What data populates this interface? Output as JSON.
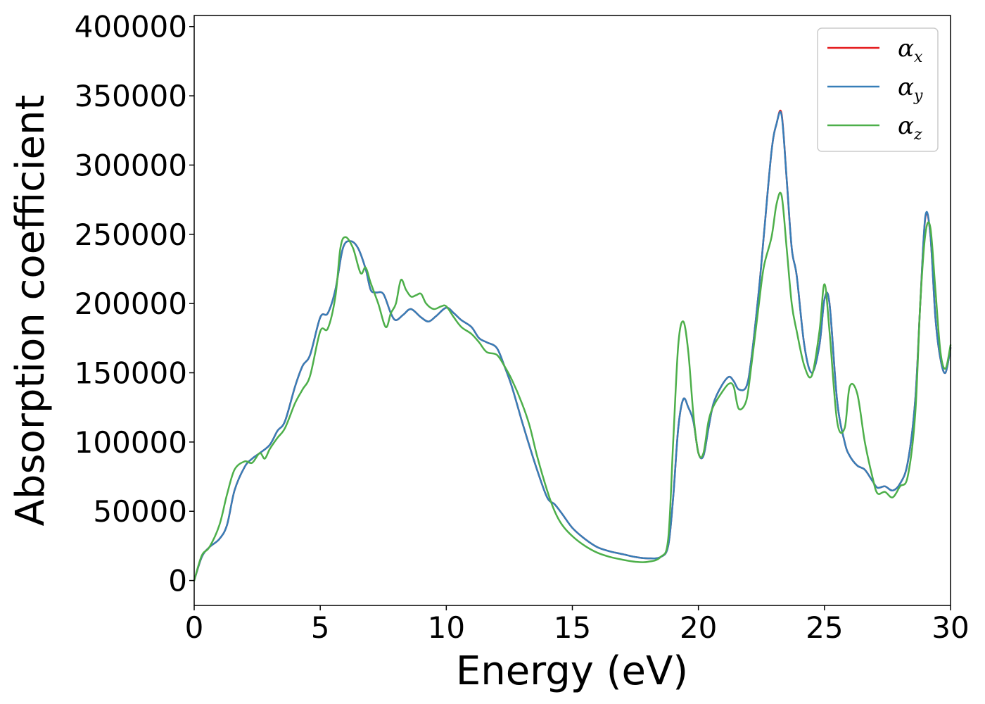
{
  "chart_data": {
    "type": "line",
    "xlabel": "Energy (eV)",
    "ylabel": "Absorption coefficient",
    "xlim": [
      0,
      30
    ],
    "ylim": [
      -18000,
      408000
    ],
    "xticks": [
      0,
      5,
      10,
      15,
      20,
      25,
      30
    ],
    "yticks": [
      0,
      50000,
      100000,
      150000,
      200000,
      250000,
      300000,
      350000,
      400000
    ],
    "grid": false,
    "legend_position": "top-right",
    "series": [
      {
        "name": "α_x",
        "symbol": "α",
        "subscript": "x",
        "color": "#e41a1c",
        "x": [
          0,
          0.3,
          0.6,
          1.0,
          1.3,
          1.6,
          2.0,
          2.3,
          2.6,
          3.0,
          3.3,
          3.6,
          4.0,
          4.3,
          4.6,
          5.0,
          5.3,
          5.6,
          5.9,
          6.2,
          6.5,
          6.8,
          7.0,
          7.2,
          7.5,
          7.8,
          8.0,
          8.3,
          8.6,
          9.0,
          9.3,
          9.6,
          10.0,
          10.3,
          10.6,
          11.0,
          11.3,
          11.6,
          12.0,
          12.3,
          12.6,
          13.0,
          13.3,
          13.6,
          14.0,
          14.3,
          14.6,
          15.0,
          15.5,
          16.0,
          16.5,
          17.0,
          17.5,
          18.0,
          18.5,
          18.8,
          19.0,
          19.2,
          19.4,
          19.6,
          19.8,
          20.0,
          20.2,
          20.4,
          20.6,
          20.9,
          21.2,
          21.4,
          21.6,
          21.9,
          22.1,
          22.4,
          22.6,
          22.9,
          23.1,
          23.3,
          23.5,
          23.7,
          23.9,
          24.2,
          24.5,
          24.8,
          25.0,
          25.2,
          25.5,
          25.8,
          26.0,
          26.3,
          26.6,
          26.9,
          27.1,
          27.4,
          27.7,
          28.0,
          28.3,
          28.6,
          28.8,
          29.0,
          29.2,
          29.4,
          29.6,
          29.8,
          30.0
        ],
        "y": [
          0,
          17000,
          24000,
          30000,
          40000,
          65000,
          82000,
          88000,
          92000,
          98000,
          108000,
          115000,
          140000,
          155000,
          163000,
          190000,
          193000,
          210000,
          240000,
          245000,
          240000,
          225000,
          210000,
          208000,
          207000,
          193000,
          188000,
          192000,
          196000,
          190000,
          187000,
          191000,
          197000,
          193000,
          188000,
          183000,
          175000,
          172000,
          168000,
          155000,
          140000,
          115000,
          97000,
          80000,
          60000,
          55000,
          48000,
          38000,
          30000,
          24000,
          21000,
          19000,
          17000,
          16000,
          17000,
          25000,
          60000,
          110000,
          131000,
          125000,
          115000,
          92000,
          90000,
          110000,
          128000,
          140000,
          147000,
          144000,
          138000,
          140000,
          160000,
          210000,
          250000,
          310000,
          330000,
          337000,
          290000,
          240000,
          220000,
          170000,
          150000,
          170000,
          203000,
          200000,
          130000,
          100000,
          90000,
          83000,
          80000,
          72000,
          67000,
          68000,
          65000,
          70000,
          85000,
          130000,
          200000,
          262000,
          250000,
          190000,
          160000,
          150000,
          168000
        ]
      },
      {
        "name": "α_y",
        "symbol": "α",
        "subscript": "y",
        "color": "#377eb8",
        "x": [
          0,
          0.3,
          0.6,
          1.0,
          1.3,
          1.6,
          2.0,
          2.3,
          2.6,
          3.0,
          3.3,
          3.6,
          4.0,
          4.3,
          4.6,
          5.0,
          5.3,
          5.6,
          5.9,
          6.2,
          6.5,
          6.8,
          7.0,
          7.2,
          7.5,
          7.8,
          8.0,
          8.3,
          8.6,
          9.0,
          9.3,
          9.6,
          10.0,
          10.3,
          10.6,
          11.0,
          11.3,
          11.6,
          12.0,
          12.3,
          12.6,
          13.0,
          13.3,
          13.6,
          14.0,
          14.3,
          14.6,
          15.0,
          15.5,
          16.0,
          16.5,
          17.0,
          17.5,
          18.0,
          18.5,
          18.8,
          19.0,
          19.2,
          19.4,
          19.6,
          19.8,
          20.0,
          20.2,
          20.4,
          20.6,
          20.9,
          21.2,
          21.4,
          21.6,
          21.9,
          22.1,
          22.4,
          22.6,
          22.9,
          23.1,
          23.3,
          23.5,
          23.7,
          23.9,
          24.2,
          24.5,
          24.8,
          25.0,
          25.2,
          25.5,
          25.8,
          26.0,
          26.3,
          26.6,
          26.9,
          27.1,
          27.4,
          27.7,
          28.0,
          28.3,
          28.6,
          28.8,
          29.0,
          29.2,
          29.4,
          29.6,
          29.8,
          30.0
        ],
        "y": [
          0,
          17000,
          24000,
          30000,
          40000,
          65000,
          82000,
          88000,
          92000,
          98000,
          108000,
          115000,
          140000,
          155000,
          163000,
          190000,
          193000,
          210000,
          240000,
          245000,
          240000,
          225000,
          210000,
          208000,
          207000,
          193000,
          188000,
          192000,
          196000,
          190000,
          187000,
          191000,
          197000,
          193000,
          188000,
          183000,
          175000,
          172000,
          168000,
          155000,
          140000,
          115000,
          97000,
          80000,
          60000,
          55000,
          48000,
          38000,
          30000,
          24000,
          21000,
          19000,
          17000,
          16000,
          17000,
          25000,
          60000,
          110000,
          131000,
          125000,
          115000,
          92000,
          90000,
          110000,
          128000,
          140000,
          147000,
          144000,
          138000,
          140000,
          160000,
          210000,
          250000,
          310000,
          330000,
          336000,
          290000,
          240000,
          220000,
          170000,
          150000,
          170000,
          203000,
          200000,
          130000,
          100000,
          90000,
          83000,
          80000,
          72000,
          67000,
          68000,
          65000,
          70000,
          85000,
          130000,
          200000,
          263000,
          250000,
          190000,
          160000,
          150000,
          168000
        ]
      },
      {
        "name": "α_z",
        "symbol": "α",
        "subscript": "z",
        "color": "#4daf4a",
        "x": [
          0,
          0.3,
          0.6,
          1.0,
          1.3,
          1.6,
          2.0,
          2.3,
          2.6,
          2.8,
          3.0,
          3.3,
          3.6,
          4.0,
          4.3,
          4.6,
          5.0,
          5.3,
          5.6,
          5.8,
          6.0,
          6.3,
          6.6,
          6.8,
          7.0,
          7.3,
          7.6,
          7.8,
          8.0,
          8.2,
          8.4,
          8.6,
          8.8,
          9.0,
          9.2,
          9.5,
          9.8,
          10.0,
          10.3,
          10.6,
          11.0,
          11.3,
          11.6,
          12.0,
          12.3,
          12.6,
          13.0,
          13.3,
          13.6,
          14.0,
          14.3,
          14.6,
          15.0,
          15.5,
          16.0,
          16.5,
          17.0,
          17.5,
          18.0,
          18.5,
          18.8,
          19.0,
          19.2,
          19.4,
          19.6,
          19.8,
          20.0,
          20.2,
          20.4,
          20.6,
          20.9,
          21.2,
          21.4,
          21.6,
          21.9,
          22.1,
          22.4,
          22.6,
          22.9,
          23.1,
          23.3,
          23.5,
          23.7,
          23.9,
          24.2,
          24.5,
          24.8,
          25.0,
          25.2,
          25.5,
          25.8,
          26.0,
          26.3,
          26.6,
          26.9,
          27.1,
          27.4,
          27.7,
          28.0,
          28.3,
          28.6,
          28.8,
          29.0,
          29.2,
          29.4,
          29.6,
          29.8,
          30.0
        ],
        "y": [
          0,
          18000,
          24000,
          40000,
          62000,
          80000,
          86000,
          85000,
          92000,
          88000,
          95000,
          103000,
          110000,
          128000,
          138000,
          148000,
          180000,
          182000,
          205000,
          240000,
          248000,
          240000,
          222000,
          226000,
          215000,
          200000,
          183000,
          193000,
          200000,
          217000,
          210000,
          205000,
          206000,
          207000,
          200000,
          196000,
          198000,
          198000,
          190000,
          183000,
          178000,
          172000,
          165000,
          163000,
          155000,
          145000,
          128000,
          112000,
          90000,
          65000,
          50000,
          40000,
          32000,
          25000,
          20000,
          17000,
          15000,
          13500,
          13500,
          17000,
          30000,
          100000,
          170000,
          187000,
          165000,
          120000,
          92000,
          92000,
          115000,
          126000,
          135000,
          142000,
          140000,
          124000,
          130000,
          155000,
          200000,
          227000,
          248000,
          272000,
          278000,
          240000,
          200000,
          180000,
          155000,
          148000,
          180000,
          214000,
          180000,
          115000,
          110000,
          140000,
          135000,
          100000,
          75000,
          63000,
          64000,
          60000,
          68000,
          75000,
          120000,
          200000,
          250000,
          255000,
          210000,
          165000,
          153000,
          170000
        ]
      }
    ]
  }
}
